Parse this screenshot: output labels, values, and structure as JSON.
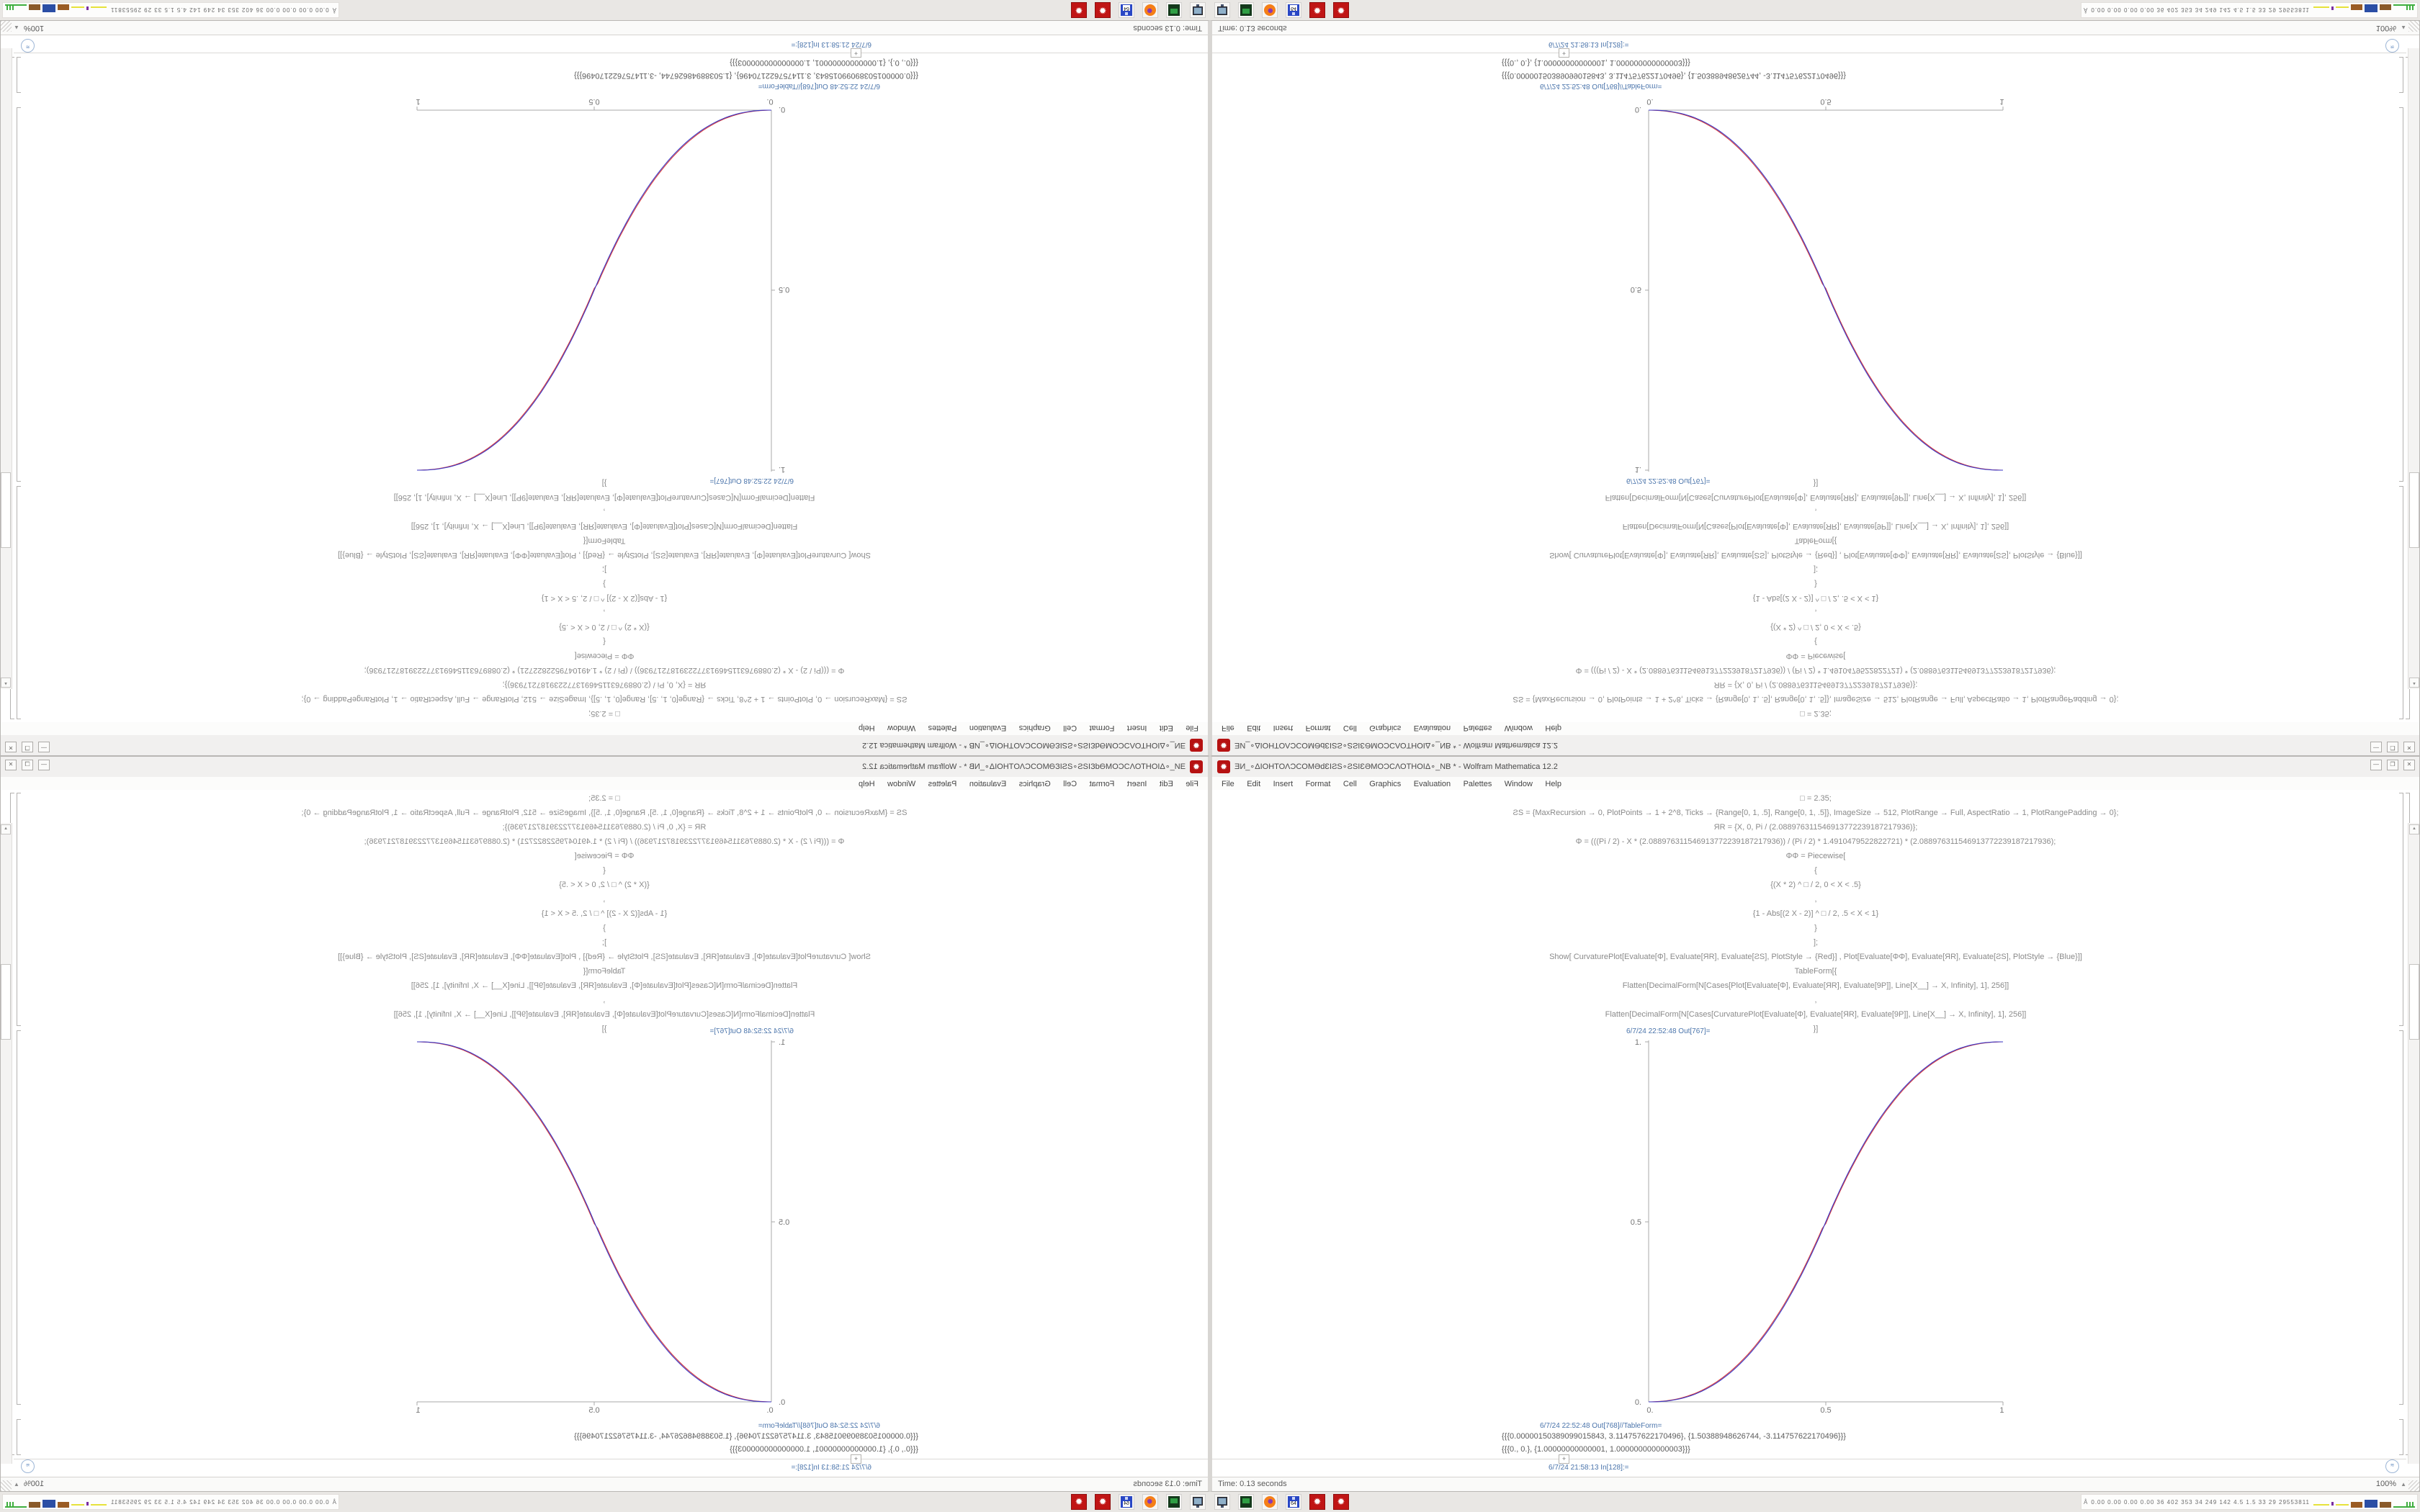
{
  "app": {
    "title": "ƎИ_∘ΔΙΟΗΤΟΛƆCOMƏdƐIƧS∘ƧSIƐƏMOƆCΛΟΤΗΟΙΔ∘_NB * - Wolfram Mathematica 12.2",
    "menu": [
      "File",
      "Edit",
      "Insert",
      "Format",
      "Cell",
      "Graphics",
      "Evaluation",
      "Palettes",
      "Window",
      "Help"
    ],
    "window_buttons": {
      "minimize": "—",
      "maximize": "❐",
      "close": "✕"
    }
  },
  "icons": {
    "spikey": "✹",
    "scroll_up": "▲",
    "zoom_triangle": "▲",
    "suggestions": "≋",
    "insert_plus": "+",
    "sysmon_person": "Å",
    "floppy_label": "64"
  },
  "notebook": {
    "code_lines": [
      "□ = 2.35;",
      "ƧS = {MaxRecursion → 0, PlotPoints → 1 + 2^8, Ticks → {Range[0, 1, .5], Range[0, 1, .5]}, ImageSize → 512, PlotRange → Full, AspectRatio → 1, PlotRangePadding → 0};",
      "ЯR = {X, 0, Pi / (2.088976311546913772239187217936)};",
      "Φ = (((Pi / 2) - X * (2.088976311546913772239187217936)) / (Pi / 2) * 1.4910479522822721) * (2.088976311546913772239187217936);",
      "ΦΦ = Piecewise[",
      "{",
      "{(X * 2) ^ □ / 2,  0 < X < .5}",
      ",",
      "{1 - Abs[(2 X - 2)] ^ □ / 2,  .5 < X < 1}",
      "}",
      "];",
      "Show[  CurvaturePlot[Evaluate[Φ], Evaluate[ЯR], Evaluate[ƧS], PlotStyle → {Red}]  ,  Plot[Evaluate[ΦΦ], Evaluate[ЯR], Evaluate[ƧS], PlotStyle → {Blue}]]",
      "TableForm[{",
      "Flatten[DecimalForm[N[Cases[Plot[Evaluate[Φ], Evaluate[ЯR], Evaluate[9P]], Line[X__] → X, Infinity], 1], 256]]",
      ",",
      "Flatten[DecimalForm[N[Cases[CurvaturePlot[Evaluate[Φ], Evaluate[ЯR], Evaluate[9P]], Line[X__] → X, Infinity], 1], 256]]",
      "}]"
    ],
    "out_plot_label": "6/7/24 22:52:48 Out[767]=",
    "out_table_label": "6/7/24 22:52:48 Out[768]//TableForm=",
    "table_rows": [
      "{{{0.00000150389099015843, 3.114757622170496}, {1.50388948626744, -3.114757622170496}}}",
      "{{{0., 0.}, {1.00000000000001, 1.000000000000003}}}"
    ],
    "next_in_label": "6/7/24 21:58:13 In[128]:=",
    "status_time": "Time: 0.13 seconds",
    "zoom_level": "100%"
  },
  "chart_data": {
    "type": "line",
    "title": "",
    "xlabel": "",
    "ylabel": "",
    "xlim": [
      0,
      1
    ],
    "ylim": [
      0,
      1
    ],
    "xticks": [
      "0.",
      "0.5",
      "1."
    ],
    "yticks": [
      "0.",
      "0.5",
      "1."
    ],
    "grid": false,
    "legend": "none",
    "axes_style": "left and bottom axes only",
    "exponent": 2.35,
    "x": [
      0,
      0.1,
      0.2,
      0.3,
      0.4,
      0.5,
      0.6,
      0.7,
      0.8,
      0.9,
      1.0
    ],
    "series": [
      {
        "name": "CurvaturePlot Φ (Red)",
        "color": "#d93a3a",
        "values": [
          0,
          0.013,
          0.061,
          0.154,
          0.3,
          0.5,
          0.7,
          0.846,
          0.939,
          0.987,
          1.0
        ]
      },
      {
        "name": "Plot ΦΦ piecewise (Blue)",
        "color": "#3a3ac8",
        "values": [
          0,
          0.011,
          0.058,
          0.15,
          0.296,
          0.5,
          0.704,
          0.85,
          0.942,
          0.989,
          1.0
        ]
      }
    ]
  },
  "taskbar": {
    "icons": [
      "monitor",
      "package",
      "firefox",
      "floppy-64",
      "mathematica-spikey",
      "mathematica-spikey"
    ],
    "sysmon_text": "0.00 0.00 0.00 0.00  36  402 353  34  249 142  4.5  1.5  33   29  29553811"
  },
  "colors": {
    "curve_red": "#d93a3a",
    "curve_blue": "#3a3ac8",
    "cell_label_blue": "#4a74ab",
    "spikey_red": "#c01515",
    "titlebar_bg": "#f1f0ef",
    "desktop_bg": "#e9e7e4"
  }
}
